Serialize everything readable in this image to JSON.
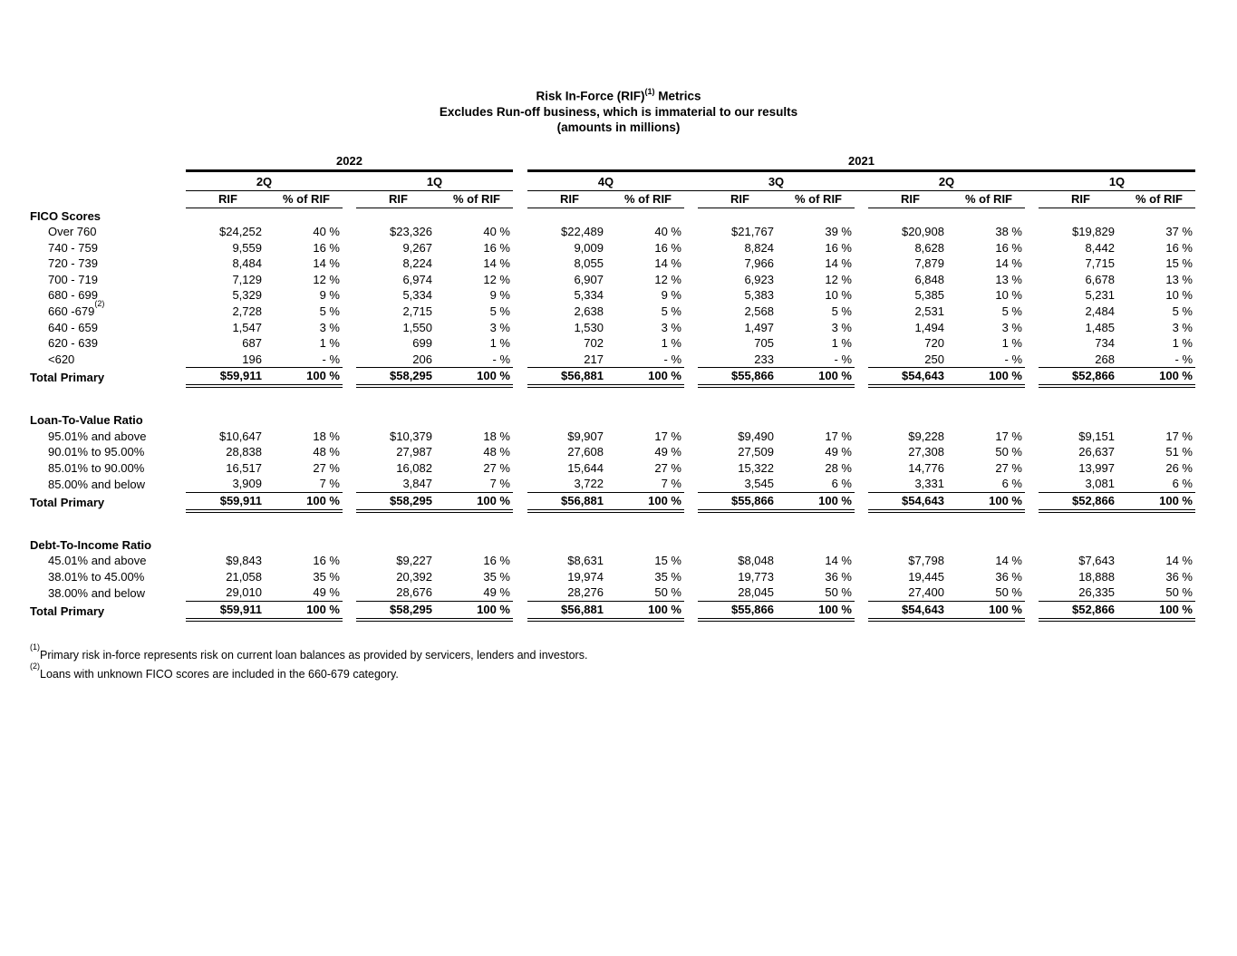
{
  "title": {
    "main_pre": "Risk In-Force (RIF)",
    "main_sup": "(1)",
    "main_post": " Metrics",
    "subtitle": "Excludes Run-off business, which is immaterial to our results",
    "units": "(amounts in millions)"
  },
  "table": {
    "years": [
      {
        "label": "2022",
        "quarters": [
          "2Q",
          "1Q"
        ]
      },
      {
        "label": "2021",
        "quarters": [
          "4Q",
          "3Q",
          "2Q",
          "1Q"
        ]
      }
    ],
    "value_header": "RIF",
    "pct_header": "% of RIF",
    "sections": [
      {
        "name": "FICO Scores",
        "rows": [
          {
            "label": "Over 760",
            "cells": [
              [
                "$24,252",
                "40 %"
              ],
              [
                "$23,326",
                "40 %"
              ],
              [
                "$22,489",
                "40 %"
              ],
              [
                "$21,767",
                "39 %"
              ],
              [
                "$20,908",
                "38 %"
              ],
              [
                "$19,829",
                "37 %"
              ]
            ]
          },
          {
            "label": "740 - 759",
            "cells": [
              [
                "9,559",
                "16 %"
              ],
              [
                "9,267",
                "16 %"
              ],
              [
                "9,009",
                "16 %"
              ],
              [
                "8,824",
                "16 %"
              ],
              [
                "8,628",
                "16 %"
              ],
              [
                "8,442",
                "16 %"
              ]
            ]
          },
          {
            "label": "720 - 739",
            "cells": [
              [
                "8,484",
                "14 %"
              ],
              [
                "8,224",
                "14 %"
              ],
              [
                "8,055",
                "14 %"
              ],
              [
                "7,966",
                "14 %"
              ],
              [
                "7,879",
                "14 %"
              ],
              [
                "7,715",
                "15 %"
              ]
            ]
          },
          {
            "label": "700 - 719",
            "cells": [
              [
                "7,129",
                "12 %"
              ],
              [
                "6,974",
                "12 %"
              ],
              [
                "6,907",
                "12 %"
              ],
              [
                "6,923",
                "12 %"
              ],
              [
                "6,848",
                "13 %"
              ],
              [
                "6,678",
                "13 %"
              ]
            ]
          },
          {
            "label": "680 - 699",
            "cells": [
              [
                "5,329",
                "9 %"
              ],
              [
                "5,334",
                "9 %"
              ],
              [
                "5,334",
                "9 %"
              ],
              [
                "5,383",
                "10 %"
              ],
              [
                "5,385",
                "10 %"
              ],
              [
                "5,231",
                "10 %"
              ]
            ]
          },
          {
            "label": "660 -679",
            "sup": "(2)",
            "cells": [
              [
                "2,728",
                "5 %"
              ],
              [
                "2,715",
                "5 %"
              ],
              [
                "2,638",
                "5 %"
              ],
              [
                "2,568",
                "5 %"
              ],
              [
                "2,531",
                "5 %"
              ],
              [
                "2,484",
                "5 %"
              ]
            ]
          },
          {
            "label": "640 - 659",
            "cells": [
              [
                "1,547",
                "3 %"
              ],
              [
                "1,550",
                "3 %"
              ],
              [
                "1,530",
                "3 %"
              ],
              [
                "1,497",
                "3 %"
              ],
              [
                "1,494",
                "3 %"
              ],
              [
                "1,485",
                "3 %"
              ]
            ]
          },
          {
            "label": "620 - 639",
            "cells": [
              [
                "687",
                "1 %"
              ],
              [
                "699",
                "1 %"
              ],
              [
                "702",
                "1 %"
              ],
              [
                "705",
                "1 %"
              ],
              [
                "720",
                "1 %"
              ],
              [
                "734",
                "1 %"
              ]
            ]
          },
          {
            "label": "<620",
            "cells": [
              [
                "196",
                "- %"
              ],
              [
                "206",
                "- %"
              ],
              [
                "217",
                "- %"
              ],
              [
                "233",
                "- %"
              ],
              [
                "250",
                "- %"
              ],
              [
                "268",
                "- %"
              ]
            ]
          }
        ],
        "total": {
          "label": "Total Primary",
          "cells": [
            [
              "$59,911",
              "100 %"
            ],
            [
              "$58,295",
              "100 %"
            ],
            [
              "$56,881",
              "100 %"
            ],
            [
              "$55,866",
              "100 %"
            ],
            [
              "$54,643",
              "100 %"
            ],
            [
              "$52,866",
              "100 %"
            ]
          ]
        }
      },
      {
        "name": "Loan-To-Value Ratio",
        "rows": [
          {
            "label": "95.01% and above",
            "cells": [
              [
                "$10,647",
                "18 %"
              ],
              [
                "$10,379",
                "18 %"
              ],
              [
                "$9,907",
                "17 %"
              ],
              [
                "$9,490",
                "17 %"
              ],
              [
                "$9,228",
                "17 %"
              ],
              [
                "$9,151",
                "17 %"
              ]
            ]
          },
          {
            "label": "90.01% to 95.00%",
            "cells": [
              [
                "28,838",
                "48 %"
              ],
              [
                "27,987",
                "48 %"
              ],
              [
                "27,608",
                "49 %"
              ],
              [
                "27,509",
                "49 %"
              ],
              [
                "27,308",
                "50 %"
              ],
              [
                "26,637",
                "51 %"
              ]
            ]
          },
          {
            "label": "85.01% to 90.00%",
            "cells": [
              [
                "16,517",
                "27 %"
              ],
              [
                "16,082",
                "27 %"
              ],
              [
                "15,644",
                "27 %"
              ],
              [
                "15,322",
                "28 %"
              ],
              [
                "14,776",
                "27 %"
              ],
              [
                "13,997",
                "26 %"
              ]
            ]
          },
          {
            "label": "85.00% and below",
            "cells": [
              [
                "3,909",
                "7 %"
              ],
              [
                "3,847",
                "7 %"
              ],
              [
                "3,722",
                "7 %"
              ],
              [
                "3,545",
                "6 %"
              ],
              [
                "3,331",
                "6 %"
              ],
              [
                "3,081",
                "6 %"
              ]
            ]
          }
        ],
        "total": {
          "label": "Total Primary",
          "cells": [
            [
              "$59,911",
              "100 %"
            ],
            [
              "$58,295",
              "100 %"
            ],
            [
              "$56,881",
              "100 %"
            ],
            [
              "$55,866",
              "100 %"
            ],
            [
              "$54,643",
              "100 %"
            ],
            [
              "$52,866",
              "100 %"
            ]
          ]
        }
      },
      {
        "name": "Debt-To-Income Ratio",
        "rows": [
          {
            "label": "45.01% and above",
            "cells": [
              [
                "$9,843",
                "16 %"
              ],
              [
                "$9,227",
                "16 %"
              ],
              [
                "$8,631",
                "15 %"
              ],
              [
                "$8,048",
                "14 %"
              ],
              [
                "$7,798",
                "14 %"
              ],
              [
                "$7,643",
                "14 %"
              ]
            ]
          },
          {
            "label": "38.01% to 45.00%",
            "cells": [
              [
                "21,058",
                "35 %"
              ],
              [
                "20,392",
                "35 %"
              ],
              [
                "19,974",
                "35 %"
              ],
              [
                "19,773",
                "36 %"
              ],
              [
                "19,445",
                "36 %"
              ],
              [
                "18,888",
                "36 %"
              ]
            ]
          },
          {
            "label": "38.00% and below",
            "cells": [
              [
                "29,010",
                "49 %"
              ],
              [
                "28,676",
                "49 %"
              ],
              [
                "28,276",
                "50 %"
              ],
              [
                "28,045",
                "50 %"
              ],
              [
                "27,400",
                "50 %"
              ],
              [
                "26,335",
                "50 %"
              ]
            ]
          }
        ],
        "total": {
          "label": "Total Primary",
          "cells": [
            [
              "$59,911",
              "100 %"
            ],
            [
              "$58,295",
              "100 %"
            ],
            [
              "$56,881",
              "100 %"
            ],
            [
              "$55,866",
              "100 %"
            ],
            [
              "$54,643",
              "100 %"
            ],
            [
              "$52,866",
              "100 %"
            ]
          ]
        }
      }
    ]
  },
  "footnotes": [
    {
      "sup": "(1)",
      "text": "Primary risk in-force represents risk on current loan balances as provided by servicers, lenders and investors."
    },
    {
      "sup": "(2)",
      "text": "Loans with unknown FICO scores are included in the 660-679 category."
    }
  ],
  "colors": {
    "text": "#000000",
    "background": "#ffffff",
    "rule": "#000000"
  }
}
